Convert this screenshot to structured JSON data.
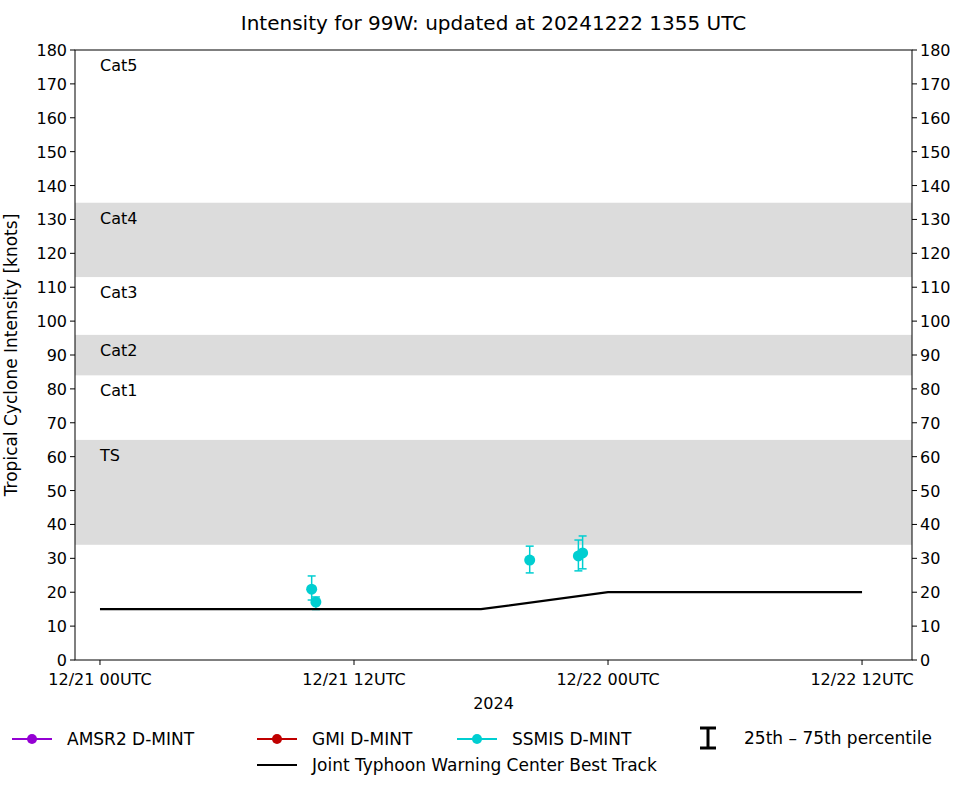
{
  "chart_data": {
    "type": "scatter",
    "title": "Intensity for 99W: updated at 20241222 1355 UTC",
    "x_label": "2024",
    "y_label": "Tropical Cyclone Intensity [knots]",
    "xlim": [
      -1.18,
      38.36
    ],
    "xticks": [
      {
        "value": 0,
        "label": "12/21 00UTC"
      },
      {
        "value": 12,
        "label": "12/21 12UTC"
      },
      {
        "value": 24,
        "label": "12/22 00UTC"
      },
      {
        "value": 36,
        "label": "12/22 12UTC"
      }
    ],
    "ylim": [
      0,
      180
    ],
    "yticks": [
      0,
      10,
      20,
      30,
      40,
      50,
      60,
      70,
      80,
      90,
      100,
      110,
      120,
      130,
      140,
      150,
      160,
      170,
      180
    ],
    "y2lim": [
      0,
      180
    ],
    "y2ticks": [
      0,
      10,
      20,
      30,
      40,
      50,
      60,
      70,
      80,
      90,
      100,
      110,
      120,
      130,
      140,
      150,
      160,
      170,
      180
    ],
    "bands": [
      {
        "label": "TS",
        "from": 34,
        "to": 65,
        "color": "#dcdcdc"
      },
      {
        "label": "Cat1",
        "from": 65,
        "to": 84,
        "color": "#ffffff"
      },
      {
        "label": "Cat2",
        "from": 84,
        "to": 96,
        "color": "#dcdcdc"
      },
      {
        "label": "Cat3",
        "from": 96,
        "to": 113,
        "color": "#ffffff"
      },
      {
        "label": "Cat4",
        "from": 113,
        "to": 135,
        "color": "#dcdcdc"
      },
      {
        "label": "Cat5",
        "from": 135,
        "to": 180,
        "color": "#ffffff"
      }
    ],
    "series": [
      {
        "name": "AMSR2 D-MINT",
        "color": "#9400d3",
        "marker": "circle",
        "x": [],
        "values": []
      },
      {
        "name": "GMI D-MINT",
        "color": "#c00000",
        "marker": "circle",
        "x": [],
        "values": []
      },
      {
        "name": "SSMIS D-MINT",
        "color": "#00ced1",
        "marker": "circle",
        "x": [
          10.0,
          10.2,
          20.3,
          22.6,
          22.8
        ],
        "values": [
          20.9,
          17.1,
          29.5,
          30.7,
          31.6
        ],
        "p25": [
          17.7,
          14.9,
          25.7,
          26.3,
          26.9
        ],
        "p75": [
          24.8,
          18.6,
          33.6,
          35.4,
          36.6
        ]
      },
      {
        "name": "Joint Typhoon Warning Center Best Track",
        "type": "line",
        "color": "#000000",
        "line_style": "solid",
        "x": [
          0,
          18,
          24,
          36
        ],
        "values": [
          15,
          15,
          20,
          20
        ]
      }
    ],
    "error_bar_label": "25th – 75th percentile",
    "legend": "bottom"
  }
}
